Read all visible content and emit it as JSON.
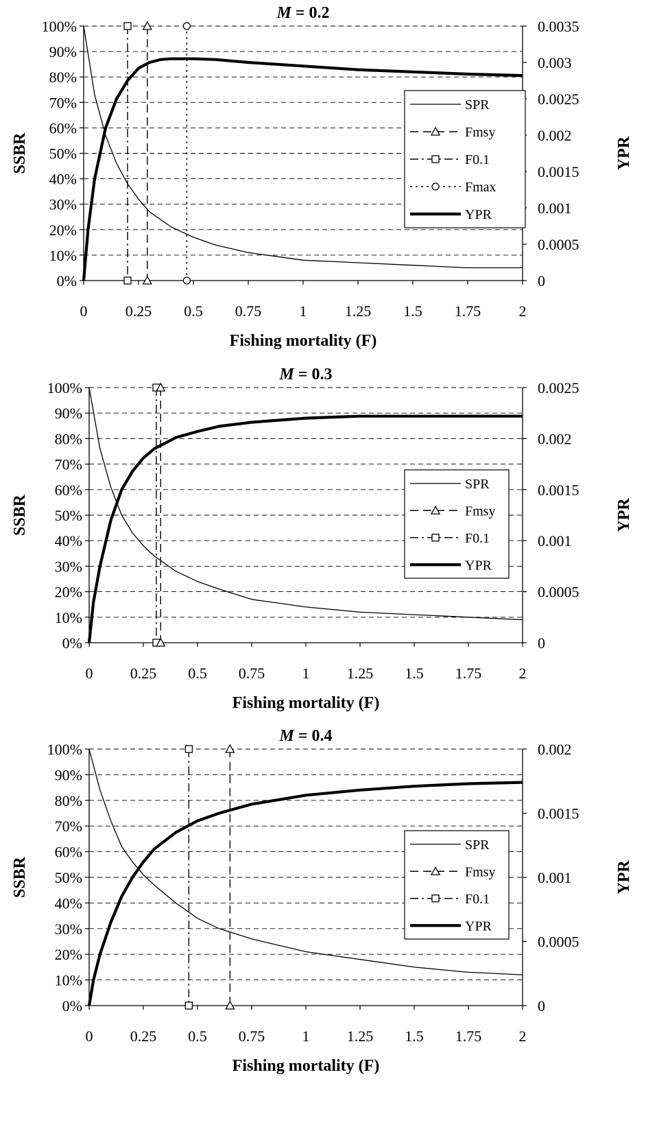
{
  "figure": {
    "background": "#ffffff",
    "ink": "#000000"
  },
  "chart_data": [
    {
      "type": "line",
      "title_prefix": "M",
      "title_suffix": " = 0.2",
      "xlabel": "Fishing mortality (F)",
      "ylabel_left": "SSBR",
      "ylabel_right": "YPR",
      "xlim": [
        0,
        2
      ],
      "ylim_left": [
        0,
        100
      ],
      "ylim_right": [
        0,
        0.0035
      ],
      "x_ticks": [
        "0",
        "0.25",
        "0.5",
        "0.75",
        "1",
        "1.25",
        "1.5",
        "1.75",
        "2"
      ],
      "x_tick_values": [
        0,
        0.25,
        0.5,
        0.75,
        1,
        1.25,
        1.5,
        1.75,
        2
      ],
      "y_left_ticks": [
        "0%",
        "10%",
        "20%",
        "30%",
        "40%",
        "50%",
        "60%",
        "70%",
        "80%",
        "90%",
        "100%"
      ],
      "y_right_ticks": [
        "0",
        "0.0005",
        "0.001",
        "0.0015",
        "0.002",
        "0.0025",
        "0.003",
        "0.0035"
      ],
      "grid": "horizontal dashed",
      "legend_position": "right",
      "legend": [
        "SPR",
        "Fmsy",
        "F0.1",
        "Fmax",
        "YPR"
      ],
      "series": [
        {
          "name": "SPR",
          "axis": "left",
          "style": "thin",
          "x": [
            0,
            0.05,
            0.1,
            0.15,
            0.2,
            0.25,
            0.3,
            0.4,
            0.5,
            0.6,
            0.75,
            1,
            1.25,
            1.5,
            1.75,
            2
          ],
          "y": [
            100,
            73,
            57,
            46,
            38,
            32,
            27,
            21,
            17,
            14,
            11,
            8,
            7,
            6,
            5,
            5
          ]
        },
        {
          "name": "YPR",
          "axis": "right",
          "style": "thick",
          "x": [
            0,
            0.02,
            0.05,
            0.1,
            0.15,
            0.2,
            0.25,
            0.3,
            0.35,
            0.4,
            0.5,
            0.6,
            0.75,
            1,
            1.25,
            1.5,
            1.75,
            2
          ],
          "y": [
            0,
            0.0007,
            0.0014,
            0.0021,
            0.0025,
            0.00275,
            0.00292,
            0.003,
            0.00304,
            0.00305,
            0.00305,
            0.00304,
            0.003,
            0.00295,
            0.0029,
            0.00287,
            0.00284,
            0.00282
          ]
        }
      ],
      "reference_lines": [
        {
          "name": "F0.1",
          "x": 0.2,
          "marker": "square",
          "dash": "dash-dot"
        },
        {
          "name": "Fmsy",
          "x": 0.29,
          "marker": "triangle",
          "dash": "dash"
        },
        {
          "name": "Fmax",
          "x": 0.47,
          "marker": "circle",
          "dash": "dot"
        }
      ]
    },
    {
      "type": "line",
      "title_prefix": "M",
      "title_suffix": " = 0.3",
      "xlabel": "Fishing mortality (F)",
      "ylabel_left": "SSBR",
      "ylabel_right": "YPR",
      "xlim": [
        0,
        2
      ],
      "ylim_left": [
        0,
        100
      ],
      "ylim_right": [
        0,
        0.0025
      ],
      "x_ticks": [
        "0",
        "0.25",
        "0.5",
        "0.75",
        "1",
        "1.25",
        "1.5",
        "1.75",
        "2"
      ],
      "x_tick_values": [
        0,
        0.25,
        0.5,
        0.75,
        1,
        1.25,
        1.5,
        1.75,
        2
      ],
      "y_left_ticks": [
        "0%",
        "10%",
        "20%",
        "30%",
        "40%",
        "50%",
        "60%",
        "70%",
        "80%",
        "90%",
        "100%"
      ],
      "y_right_ticks": [
        "0",
        "0.0005",
        "0.001",
        "0.0015",
        "0.002",
        "0.0025"
      ],
      "grid": "horizontal dashed",
      "legend_position": "right",
      "legend": [
        "SPR",
        "Fmsy",
        "F0.1",
        "YPR"
      ],
      "series": [
        {
          "name": "SPR",
          "axis": "left",
          "style": "thin",
          "x": [
            0,
            0.05,
            0.1,
            0.15,
            0.2,
            0.25,
            0.3,
            0.4,
            0.5,
            0.6,
            0.75,
            1,
            1.25,
            1.5,
            1.75,
            2
          ],
          "y": [
            100,
            76,
            61,
            50,
            43,
            38,
            34,
            28,
            24,
            21,
            17,
            14,
            12,
            11,
            10,
            9
          ]
        },
        {
          "name": "YPR",
          "axis": "right",
          "style": "thick",
          "x": [
            0,
            0.02,
            0.05,
            0.1,
            0.15,
            0.2,
            0.25,
            0.3,
            0.4,
            0.5,
            0.6,
            0.75,
            1,
            1.25,
            1.5,
            1.75,
            2
          ],
          "y": [
            0,
            0.0004,
            0.00075,
            0.0012,
            0.0015,
            0.00168,
            0.00181,
            0.0019,
            0.00201,
            0.00207,
            0.00212,
            0.00216,
            0.0022,
            0.00222,
            0.00222,
            0.00222,
            0.00222
          ]
        }
      ],
      "reference_lines": [
        {
          "name": "F0.1",
          "x": 0.31,
          "marker": "square",
          "dash": "dash-dot"
        },
        {
          "name": "Fmsy",
          "x": 0.33,
          "marker": "triangle",
          "dash": "dash"
        }
      ]
    },
    {
      "type": "line",
      "title_prefix": "M",
      "title_suffix": " = 0.4",
      "xlabel": "Fishing mortality (F)",
      "ylabel_left": "SSBR",
      "ylabel_right": "YPR",
      "xlim": [
        0,
        2
      ],
      "ylim_left": [
        0,
        100
      ],
      "ylim_right": [
        0,
        0.002
      ],
      "x_ticks": [
        "0",
        "0.25",
        "0.5",
        "0.75",
        "1",
        "1.25",
        "1.5",
        "1.75",
        "2"
      ],
      "x_tick_values": [
        0,
        0.25,
        0.5,
        0.75,
        1,
        1.25,
        1.5,
        1.75,
        2
      ],
      "y_left_ticks": [
        "0%",
        "10%",
        "20%",
        "30%",
        "40%",
        "50%",
        "60%",
        "70%",
        "80%",
        "90%",
        "100%"
      ],
      "y_right_ticks": [
        "0",
        "0.0005",
        "0.001",
        "0.0015",
        "0.002"
      ],
      "grid": "horizontal dashed",
      "legend_position": "right",
      "legend": [
        "SPR",
        "Fmsy",
        "F0.1",
        "YPR"
      ],
      "series": [
        {
          "name": "SPR",
          "axis": "left",
          "style": "thin",
          "x": [
            0,
            0.05,
            0.1,
            0.15,
            0.2,
            0.25,
            0.3,
            0.4,
            0.5,
            0.6,
            0.75,
            1,
            1.25,
            1.5,
            1.75,
            2
          ],
          "y": [
            100,
            84,
            72,
            62,
            56,
            51,
            47,
            40,
            34,
            30,
            26,
            21,
            18,
            15,
            13,
            12
          ]
        },
        {
          "name": "YPR",
          "axis": "right",
          "style": "thick",
          "x": [
            0,
            0.02,
            0.05,
            0.1,
            0.15,
            0.2,
            0.25,
            0.3,
            0.4,
            0.5,
            0.6,
            0.75,
            1,
            1.25,
            1.5,
            1.75,
            2
          ],
          "y": [
            0,
            0.0002,
            0.0004,
            0.00065,
            0.00085,
            0.001,
            0.00112,
            0.00122,
            0.00135,
            0.00144,
            0.0015,
            0.00157,
            0.00164,
            0.00168,
            0.00171,
            0.00173,
            0.00174
          ]
        }
      ],
      "reference_lines": [
        {
          "name": "F0.1",
          "x": 0.46,
          "marker": "square",
          "dash": "dash-dot"
        },
        {
          "name": "Fmsy",
          "x": 0.65,
          "marker": "triangle",
          "dash": "dash"
        }
      ]
    }
  ]
}
